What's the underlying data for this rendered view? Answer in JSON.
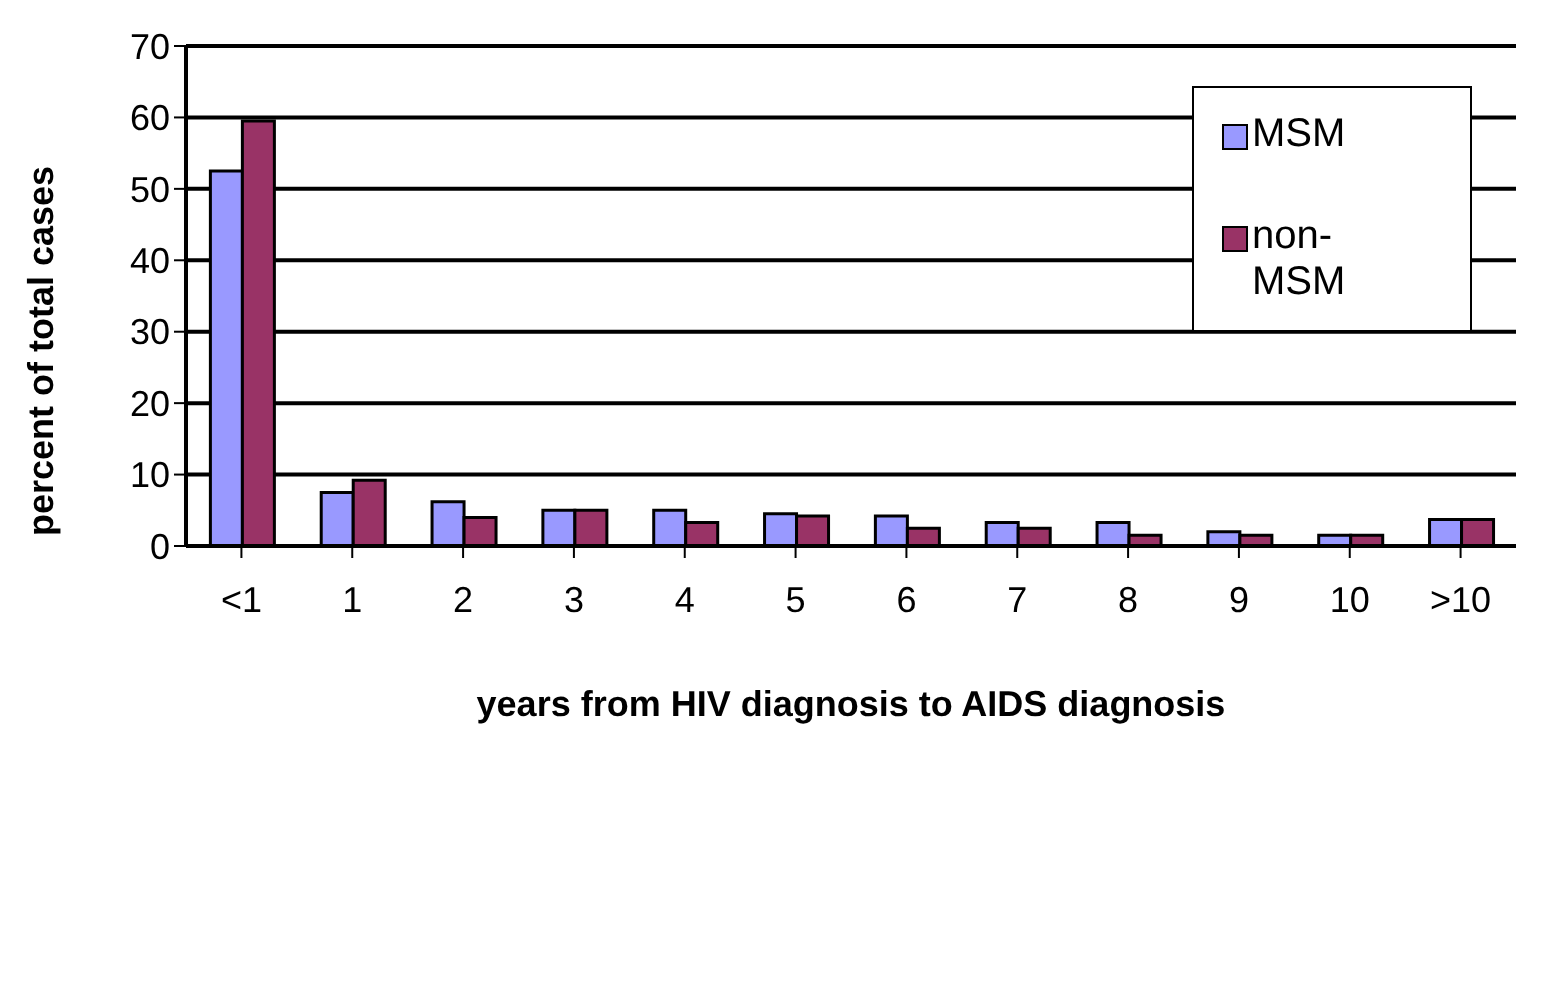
{
  "chart_data": {
    "type": "bar",
    "xlabel": "years from HIV diagnosis to AIDS diagnosis",
    "ylabel": "percent of total cases",
    "categories": [
      "<1",
      "1",
      "2",
      "3",
      "4",
      "5",
      "6",
      "7",
      "8",
      "9",
      "10",
      ">10"
    ],
    "series": [
      {
        "name": "MSM",
        "color": "#9999ff",
        "values": [
          52.5,
          7.5,
          6.2,
          5,
          5,
          4.5,
          4.2,
          3.3,
          3.3,
          2,
          1.5,
          3.7
        ]
      },
      {
        "name": "non-MSM",
        "color": "#993366",
        "values": [
          59.5,
          9.2,
          4,
          5,
          3.3,
          4.2,
          2.5,
          2.5,
          1.5,
          1.5,
          1.5,
          3.7
        ]
      }
    ],
    "ylim": [
      0,
      70
    ],
    "yticks": [
      0,
      10,
      20,
      30,
      40,
      50,
      60,
      70
    ],
    "grid": "y",
    "legend": "top right"
  }
}
